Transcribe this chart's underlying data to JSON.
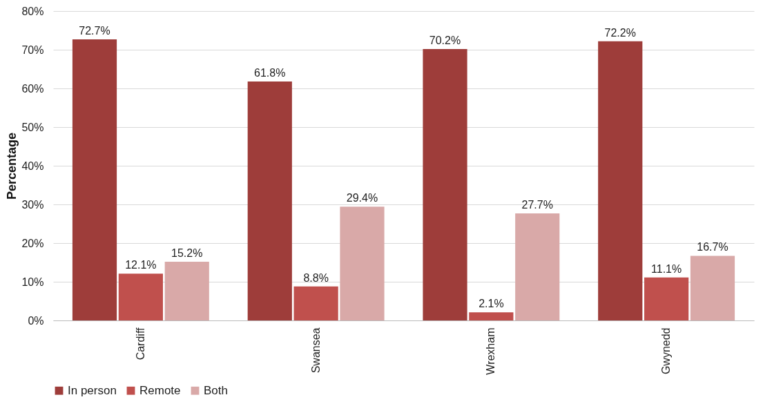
{
  "chart_data": {
    "type": "bar",
    "ylabel": "Percentage",
    "categories": [
      "Cardiff",
      "Swansea",
      "Wrexham",
      "Gwynedd"
    ],
    "series": [
      {
        "name": "In person",
        "color": "#9e3d3a",
        "values": [
          72.7,
          61.8,
          70.2,
          72.2
        ],
        "value_labels": [
          "72.7%",
          "61.8%",
          "70.2%",
          "72.2%"
        ]
      },
      {
        "name": "Remote",
        "color": "#c0504d",
        "values": [
          12.1,
          8.8,
          2.1,
          11.1
        ],
        "value_labels": [
          "12.1%",
          "8.8%",
          "2.1%",
          "11.1%"
        ]
      },
      {
        "name": "Both",
        "color": "#d9a9a8",
        "values": [
          15.2,
          29.4,
          27.7,
          16.7
        ],
        "value_labels": [
          "15.2%",
          "29.4%",
          "27.7%",
          "16.7%"
        ]
      }
    ],
    "ylim": [
      0,
      80
    ],
    "yticks": [
      {
        "value": 0,
        "label": "0%"
      },
      {
        "value": 10,
        "label": "10%"
      },
      {
        "value": 20,
        "label": "20%"
      },
      {
        "value": 30,
        "label": "30%"
      },
      {
        "value": 40,
        "label": "40%"
      },
      {
        "value": 50,
        "label": "50%"
      },
      {
        "value": 60,
        "label": "60%"
      },
      {
        "value": 70,
        "label": "70%"
      },
      {
        "value": 80,
        "label": "80%"
      }
    ],
    "grid": "y",
    "legend": "bottom"
  }
}
